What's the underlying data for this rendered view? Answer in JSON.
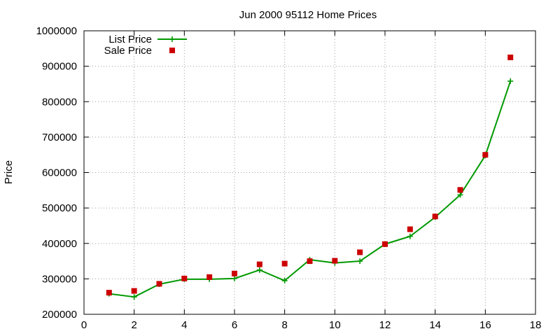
{
  "chart_data": {
    "type": "line",
    "title": "Jun 2000 95112 Home Prices",
    "xlabel": "",
    "ylabel": "Price",
    "xlim": [
      0,
      18
    ],
    "ylim": [
      200000,
      1000000
    ],
    "xticks": [
      "0",
      "2",
      "4",
      "6",
      "8",
      "10",
      "12",
      "14",
      "16",
      "18"
    ],
    "yticks": [
      "200000",
      "300000",
      "400000",
      "500000",
      "600000",
      "700000",
      "800000",
      "900000",
      "1000000"
    ],
    "grid": true,
    "legend_position": "top-left",
    "x": [
      1,
      2,
      3,
      4,
      5,
      6,
      7,
      8,
      9,
      10,
      11,
      12,
      13,
      14,
      15,
      16,
      17
    ],
    "series": [
      {
        "name": "List Price",
        "style": "line-plus",
        "color": "#009900",
        "values": [
          258000,
          249000,
          285000,
          299000,
          299000,
          301000,
          325000,
          295000,
          354000,
          345000,
          350000,
          398000,
          420000,
          474000,
          537000,
          648000,
          858000
        ]
      },
      {
        "name": "Sale Price",
        "style": "square-marker",
        "color": "#cc0000",
        "values": [
          261000,
          266000,
          286000,
          301000,
          305000,
          315000,
          341000,
          343000,
          350000,
          351000,
          375000,
          398000,
          440000,
          476000,
          551000,
          650000,
          925000
        ]
      }
    ]
  }
}
